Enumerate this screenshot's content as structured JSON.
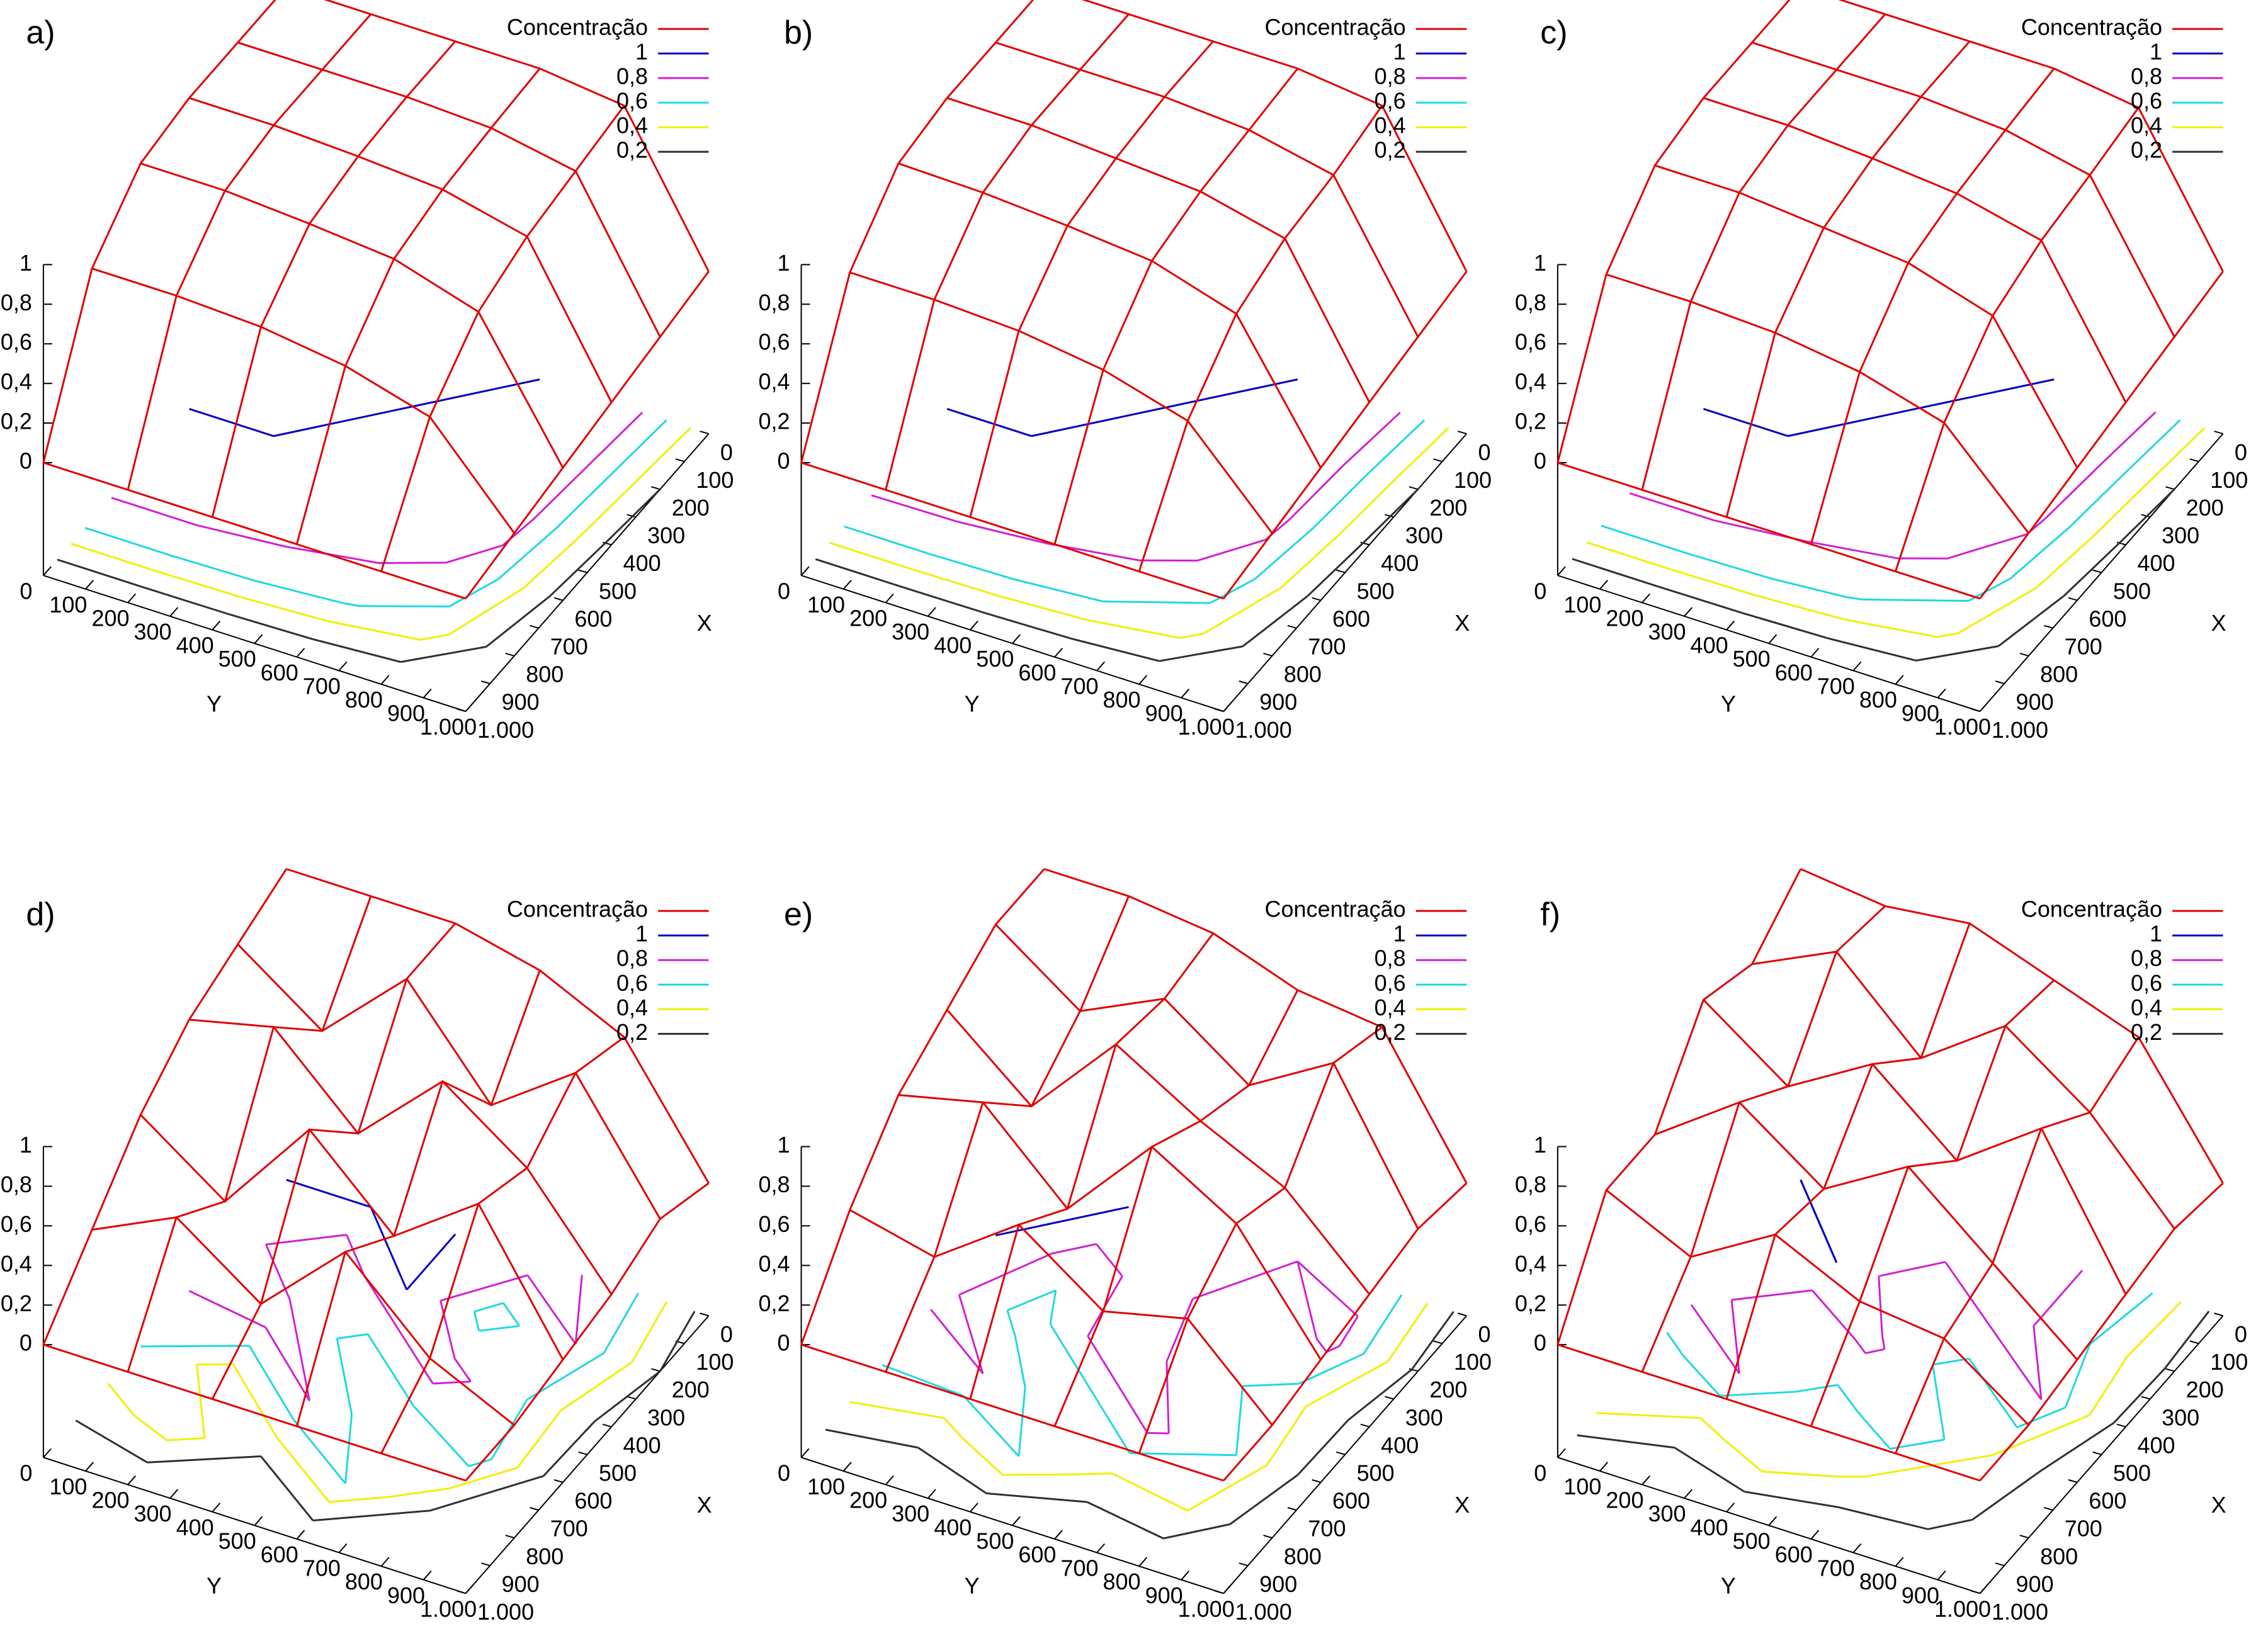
{
  "chart_data": [
    {
      "type": "surface",
      "title": "a)",
      "x": [
        0,
        200,
        400,
        600,
        800,
        1000
      ],
      "y": [
        0,
        200,
        400,
        600,
        800,
        1000
      ],
      "z": [
        [
          1,
          1,
          1,
          1,
          0.95,
          0.25
        ],
        [
          1,
          1,
          1,
          0.98,
          0.9,
          0.2
        ],
        [
          1,
          1,
          0.98,
          0.95,
          0.85,
          0.15
        ],
        [
          0.95,
          0.95,
          0.92,
          0.88,
          0.75,
          0.1
        ],
        [
          0.7,
          0.7,
          0.68,
          0.62,
          0.5,
          0.05
        ],
        [
          0,
          0,
          0,
          0,
          0,
          0
        ]
      ],
      "xlim": [
        0,
        1000
      ],
      "ylim": [
        0,
        1000
      ],
      "zlim": [
        0,
        1
      ],
      "xlabel": "X",
      "ylabel": "Y",
      "xticks": [
        0,
        100,
        200,
        300,
        400,
        500,
        600,
        700,
        800,
        900,
        {
          "value": 1000,
          "label": "1.000"
        }
      ],
      "yticks": [
        0,
        100,
        200,
        300,
        400,
        500,
        600,
        700,
        800,
        900,
        {
          "value": 1000,
          "label": "1.000"
        }
      ],
      "zticks": [
        0,
        {
          "value": 0.2,
          "label": "0,2"
        },
        {
          "value": 0.4,
          "label": "0,4"
        },
        {
          "value": 0.6,
          "label": "0,6"
        },
        {
          "value": 0.8,
          "label": "0,8"
        },
        1
      ],
      "series": [
        {
          "name": "Concentração",
          "color": "#e00000"
        }
      ],
      "contours": [
        {
          "name": "1",
          "level": 1,
          "color": "#0000c0"
        },
        {
          "name": "0,8",
          "level": 0.8,
          "color": "#d020d0"
        },
        {
          "name": "0,6",
          "level": 0.6,
          "color": "#20d8e0"
        },
        {
          "name": "0,4",
          "level": 0.4,
          "color": "#f0f000"
        },
        {
          "name": "0,2",
          "level": 0.2,
          "color": "#303030"
        }
      ]
    },
    {
      "type": "surface",
      "title": "b)",
      "x": [
        0,
        200,
        400,
        600,
        800,
        1000
      ],
      "y": [
        0,
        200,
        400,
        600,
        800,
        1000
      ],
      "z": [
        [
          1,
          1,
          1,
          1,
          0.95,
          0.25
        ],
        [
          1,
          1,
          1,
          0.97,
          0.88,
          0.2
        ],
        [
          1,
          1,
          0.97,
          0.94,
          0.84,
          0.15
        ],
        [
          0.95,
          0.94,
          0.91,
          0.87,
          0.74,
          0.1
        ],
        [
          0.68,
          0.68,
          0.66,
          0.6,
          0.48,
          0.05
        ],
        [
          0,
          0,
          0,
          0,
          0,
          0
        ]
      ],
      "xlim": [
        0,
        1000
      ],
      "ylim": [
        0,
        1000
      ],
      "zlim": [
        0,
        1
      ],
      "xlabel": "X",
      "ylabel": "Y",
      "xticks": [
        0,
        100,
        200,
        300,
        400,
        500,
        600,
        700,
        800,
        900,
        {
          "value": 1000,
          "label": "1.000"
        }
      ],
      "yticks": [
        0,
        100,
        200,
        300,
        400,
        500,
        600,
        700,
        800,
        900,
        {
          "value": 1000,
          "label": "1.000"
        }
      ],
      "zticks": [
        0,
        {
          "value": 0.2,
          "label": "0,2"
        },
        {
          "value": 0.4,
          "label": "0,4"
        },
        {
          "value": 0.6,
          "label": "0,6"
        },
        {
          "value": 0.8,
          "label": "0,8"
        },
        1
      ],
      "series": [
        {
          "name": "Concentração",
          "color": "#e00000"
        }
      ],
      "contours": [
        {
          "name": "1",
          "level": 1,
          "color": "#0000c0"
        },
        {
          "name": "0,8",
          "level": 0.8,
          "color": "#d020d0"
        },
        {
          "name": "0,6",
          "level": 0.6,
          "color": "#20d8e0"
        },
        {
          "name": "0,4",
          "level": 0.4,
          "color": "#f0f000"
        },
        {
          "name": "0,2",
          "level": 0.2,
          "color": "#303030"
        }
      ]
    },
    {
      "type": "surface",
      "title": "c)",
      "x": [
        0,
        200,
        400,
        600,
        800,
        1000
      ],
      "y": [
        0,
        200,
        400,
        600,
        800,
        1000
      ],
      "z": [
        [
          1,
          1,
          1,
          1,
          0.94,
          0.25
        ],
        [
          1,
          1,
          1,
          0.97,
          0.88,
          0.2
        ],
        [
          1,
          1,
          0.97,
          0.93,
          0.83,
          0.15
        ],
        [
          0.94,
          0.94,
          0.9,
          0.86,
          0.73,
          0.1
        ],
        [
          0.67,
          0.67,
          0.65,
          0.59,
          0.47,
          0.05
        ],
        [
          0,
          0,
          0,
          0,
          0,
          0
        ]
      ],
      "xlim": [
        0,
        1000
      ],
      "ylim": [
        0,
        1000
      ],
      "zlim": [
        0,
        1
      ],
      "xlabel": "X",
      "ylabel": "Y",
      "xticks": [
        0,
        100,
        200,
        300,
        400,
        500,
        600,
        700,
        800,
        900,
        {
          "value": 1000,
          "label": "1.000"
        }
      ],
      "yticks": [
        0,
        100,
        200,
        300,
        400,
        500,
        600,
        700,
        800,
        900,
        {
          "value": 1000,
          "label": "1.000"
        }
      ],
      "zticks": [
        0,
        {
          "value": 0.2,
          "label": "0,2"
        },
        {
          "value": 0.4,
          "label": "0,4"
        },
        {
          "value": 0.6,
          "label": "0,6"
        },
        {
          "value": 0.8,
          "label": "0,8"
        },
        1
      ],
      "series": [
        {
          "name": "Concentração",
          "color": "#e00000"
        }
      ],
      "contours": [
        {
          "name": "1",
          "level": 1,
          "color": "#0000c0"
        },
        {
          "name": "0,8",
          "level": 0.8,
          "color": "#d020d0"
        },
        {
          "name": "0,6",
          "level": 0.6,
          "color": "#20d8e0"
        },
        {
          "name": "0,4",
          "level": 0.4,
          "color": "#f0f000"
        },
        {
          "name": "0,2",
          "level": 0.2,
          "color": "#303030"
        }
      ]
    },
    {
      "type": "surface",
      "title": "d)",
      "x": [
        0,
        200,
        400,
        600,
        800,
        1000
      ],
      "y": [
        0,
        200,
        400,
        600,
        800,
        1000
      ],
      "z": [
        [
          1,
          1,
          1,
          0.9,
          0.7,
          0.1
        ],
        [
          0.9,
          0.6,
          1,
          0.5,
          0.8,
          0.2
        ],
        [
          0.8,
          0.9,
          0.5,
          0.9,
          0.6,
          0.1
        ],
        [
          0.6,
          0.3,
          0.8,
          0.4,
          0.7,
          0.05
        ],
        [
          0.3,
          0.5,
          0.2,
          0.6,
          0.2,
          0
        ],
        [
          0,
          0,
          0,
          0,
          0,
          0
        ]
      ],
      "xlim": [
        0,
        1000
      ],
      "ylim": [
        0,
        1000
      ],
      "zlim": [
        0,
        1
      ],
      "xlabel": "X",
      "ylabel": "Y",
      "xticks": [
        0,
        100,
        200,
        300,
        400,
        500,
        600,
        700,
        800,
        900,
        {
          "value": 1000,
          "label": "1.000"
        }
      ],
      "yticks": [
        0,
        100,
        200,
        300,
        400,
        500,
        600,
        700,
        800,
        900,
        {
          "value": 1000,
          "label": "1.000"
        }
      ],
      "zticks": [
        0,
        {
          "value": 0.2,
          "label": "0,2"
        },
        {
          "value": 0.4,
          "label": "0,4"
        },
        {
          "value": 0.6,
          "label": "0,6"
        },
        {
          "value": 0.8,
          "label": "0,8"
        },
        1
      ],
      "series": [
        {
          "name": "Concentração",
          "color": "#e00000"
        }
      ],
      "contours": [
        {
          "name": "1",
          "level": 1,
          "color": "#0000c0"
        },
        {
          "name": "0,8",
          "level": 0.8,
          "color": "#d020d0"
        },
        {
          "name": "0,6",
          "level": 0.6,
          "color": "#20d8e0"
        },
        {
          "name": "0,4",
          "level": 0.4,
          "color": "#f0f000"
        },
        {
          "name": "0,2",
          "level": 0.2,
          "color": "#303030"
        }
      ]
    },
    {
      "type": "surface",
      "title": "e)",
      "x": [
        0,
        200,
        400,
        600,
        800,
        1000
      ],
      "y": [
        0,
        200,
        400,
        600,
        800,
        1000
      ],
      "z": [
        [
          1,
          1,
          0.95,
          0.8,
          0.75,
          0.1
        ],
        [
          1,
          0.7,
          0.9,
          0.6,
          0.85,
          0.15
        ],
        [
          0.85,
          0.5,
          0.95,
          0.7,
          0.5,
          0.1
        ],
        [
          0.7,
          0.8,
          0.4,
          0.85,
          0.6,
          0.05
        ],
        [
          0.4,
          0.3,
          0.6,
          0.3,
          0.4,
          0
        ],
        [
          0,
          0,
          0,
          0,
          0,
          0
        ]
      ],
      "xlim": [
        0,
        1000
      ],
      "ylim": [
        0,
        1000
      ],
      "zlim": [
        0,
        1
      ],
      "xlabel": "X",
      "ylabel": "Y",
      "xticks": [
        0,
        100,
        200,
        300,
        400,
        500,
        600,
        700,
        800,
        900,
        {
          "value": 1000,
          "label": "1.000"
        }
      ],
      "yticks": [
        0,
        100,
        200,
        300,
        400,
        500,
        600,
        700,
        800,
        900,
        {
          "value": 1000,
          "label": "1.000"
        }
      ],
      "zticks": [
        0,
        {
          "value": 0.2,
          "label": "0,2"
        },
        {
          "value": 0.4,
          "label": "0,4"
        },
        {
          "value": 0.6,
          "label": "0,6"
        },
        {
          "value": 0.8,
          "label": "0,8"
        },
        1
      ],
      "series": [
        {
          "name": "Concentração",
          "color": "#e00000"
        }
      ],
      "contours": [
        {
          "name": "1",
          "level": 1,
          "color": "#0000c0"
        },
        {
          "name": "0,8",
          "level": 0.8,
          "color": "#d020d0"
        },
        {
          "name": "0,6",
          "level": 0.6,
          "color": "#20d8e0"
        },
        {
          "name": "0,4",
          "level": 0.4,
          "color": "#f0f000"
        },
        {
          "name": "0,2",
          "level": 0.2,
          "color": "#303030"
        }
      ]
    },
    {
      "type": "surface",
      "title": "f)",
      "x": [
        0,
        200,
        400,
        600,
        800,
        1000
      ],
      "y": [
        0,
        200,
        400,
        600,
        800,
        1000
      ],
      "z": [
        [
          1,
          0.95,
          1,
          0.85,
          0.7,
          0.1
        ],
        [
          0.8,
          1,
          0.6,
          0.9,
          0.6,
          0.15
        ],
        [
          0.9,
          0.6,
          0.85,
          0.5,
          0.8,
          0.1
        ],
        [
          0.5,
          0.8,
          0.5,
          0.75,
          0.4,
          0.05
        ],
        [
          0.5,
          0.3,
          0.55,
          0.35,
          0.3,
          0
        ],
        [
          0,
          0,
          0,
          0,
          0,
          0
        ]
      ],
      "xlim": [
        0,
        1000
      ],
      "ylim": [
        0,
        1000
      ],
      "zlim": [
        0,
        1
      ],
      "xlabel": "X",
      "ylabel": "Y",
      "xticks": [
        0,
        100,
        200,
        300,
        400,
        500,
        600,
        700,
        800,
        900,
        {
          "value": 1000,
          "label": "1.000"
        }
      ],
      "yticks": [
        0,
        100,
        200,
        300,
        400,
        500,
        600,
        700,
        800,
        900,
        {
          "value": 1000,
          "label": "1.000"
        }
      ],
      "zticks": [
        0,
        {
          "value": 0.2,
          "label": "0,2"
        },
        {
          "value": 0.4,
          "label": "0,4"
        },
        {
          "value": 0.6,
          "label": "0,6"
        },
        {
          "value": 0.8,
          "label": "0,8"
        },
        1
      ],
      "series": [
        {
          "name": "Concentração",
          "color": "#e00000"
        }
      ],
      "contours": [
        {
          "name": "1",
          "level": 1,
          "color": "#0000c0"
        },
        {
          "name": "0,8",
          "level": 0.8,
          "color": "#d020d0"
        },
        {
          "name": "0,6",
          "level": 0.6,
          "color": "#20d8e0"
        },
        {
          "name": "0,4",
          "level": 0.4,
          "color": "#f0f000"
        },
        {
          "name": "0,2",
          "level": 0.2,
          "color": "#303030"
        }
      ]
    }
  ]
}
